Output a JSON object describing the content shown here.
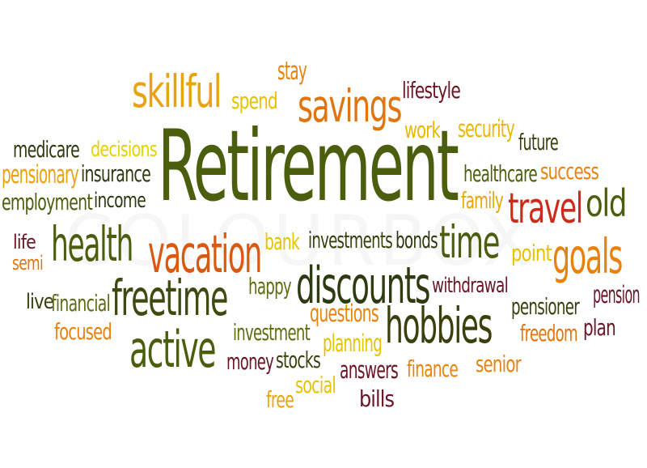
{
  "watermark": "COLOURBOX",
  "palette": {
    "dark_olive": "#3d5a10",
    "olive": "#5d6d10",
    "orange": "#e8820c",
    "gold": "#e6b800",
    "yellow": "#e4d000",
    "red": "#cc2b1c",
    "maroon": "#6b1424",
    "dark": "#2a3a0d"
  },
  "words": [
    {
      "text": "Retirement",
      "color": "#4b5e0d"
    },
    {
      "text": "skillful",
      "color": "#e8a30e"
    },
    {
      "text": "stay",
      "color": "#e8820c"
    },
    {
      "text": "spend",
      "color": "#e6c200"
    },
    {
      "text": "savings",
      "color": "#e07510"
    },
    {
      "text": "lifestyle",
      "color": "#6b1424"
    },
    {
      "text": "work",
      "color": "#e6b800"
    },
    {
      "text": "security",
      "color": "#e6b800"
    },
    {
      "text": "future",
      "color": "#3a3f0c"
    },
    {
      "text": "medicare",
      "color": "#2e3a10"
    },
    {
      "text": "decisions",
      "color": "#e6d200"
    },
    {
      "text": "pensionary",
      "color": "#e8a30e"
    },
    {
      "text": "insurance",
      "color": "#2e3a10"
    },
    {
      "text": "employment",
      "color": "#4b5e0d"
    },
    {
      "text": "income",
      "color": "#2e3a10"
    },
    {
      "text": "healthcare",
      "color": "#4b5e0d"
    },
    {
      "text": "success",
      "color": "#e8820c"
    },
    {
      "text": "family",
      "color": "#e8a30e"
    },
    {
      "text": "travel",
      "color": "#cc2b1c"
    },
    {
      "text": "old",
      "color": "#4b5e0d"
    },
    {
      "text": "life",
      "color": "#6b1424"
    },
    {
      "text": "semi",
      "color": "#e07510"
    },
    {
      "text": "health",
      "color": "#4b5e0d"
    },
    {
      "text": "vacation",
      "color": "#d85a12"
    },
    {
      "text": "bank",
      "color": "#e6c200"
    },
    {
      "text": "investments",
      "color": "#3a3f0c"
    },
    {
      "text": "bonds",
      "color": "#2e3a10"
    },
    {
      "text": "time",
      "color": "#4b5e0d"
    },
    {
      "text": "point",
      "color": "#e6c200"
    },
    {
      "text": "goals",
      "color": "#e8820c"
    },
    {
      "text": "discounts",
      "color": "#2e3a10"
    },
    {
      "text": "freetime",
      "color": "#3d4a10"
    },
    {
      "text": "happy",
      "color": "#5d6d10"
    },
    {
      "text": "withdrawal",
      "color": "#6b1424"
    },
    {
      "text": "pension",
      "color": "#6b1424"
    },
    {
      "text": "live",
      "color": "#3a3f0c"
    },
    {
      "text": "financial",
      "color": "#5d6d10"
    },
    {
      "text": "pensioner",
      "color": "#3a3f0c"
    },
    {
      "text": "questions",
      "color": "#e8820c"
    },
    {
      "text": "hobbies",
      "color": "#3a3f0c"
    },
    {
      "text": "focused",
      "color": "#e8820c"
    },
    {
      "text": "freedom",
      "color": "#e07510"
    },
    {
      "text": "plan",
      "color": "#6b1424"
    },
    {
      "text": "active",
      "color": "#4b5e0d"
    },
    {
      "text": "investment",
      "color": "#5d6d10"
    },
    {
      "text": "planning",
      "color": "#e6c200"
    },
    {
      "text": "money",
      "color": "#6b1424"
    },
    {
      "text": "stocks",
      "color": "#3a3f0c"
    },
    {
      "text": "answers",
      "color": "#6b1424"
    },
    {
      "text": "finance",
      "color": "#e8820c"
    },
    {
      "text": "senior",
      "color": "#e8820c"
    },
    {
      "text": "social",
      "color": "#e6c200"
    },
    {
      "text": "free",
      "color": "#e8a30e"
    },
    {
      "text": "bills",
      "color": "#6b1424"
    }
  ]
}
